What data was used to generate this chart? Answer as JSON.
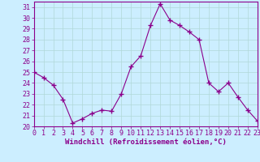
{
  "x": [
    0,
    1,
    2,
    3,
    4,
    5,
    6,
    7,
    8,
    9,
    10,
    11,
    12,
    13,
    14,
    15,
    16,
    17,
    18,
    19,
    20,
    21,
    22,
    23
  ],
  "y": [
    25.0,
    24.5,
    23.8,
    22.5,
    20.3,
    20.7,
    21.2,
    21.5,
    21.4,
    23.0,
    25.5,
    26.5,
    29.3,
    31.3,
    29.8,
    29.3,
    28.7,
    28.0,
    24.0,
    23.2,
    24.0,
    22.7,
    21.5,
    20.5
  ],
  "line_color": "#8B008B",
  "marker": "+",
  "marker_size": 4,
  "bg_color": "#cceeff",
  "grid_color": "#b0d8d8",
  "xlabel": "Windchill (Refroidissement éolien,°C)",
  "ylabel": "",
  "xlim": [
    0,
    23
  ],
  "ylim": [
    20,
    31.5
  ],
  "yticks": [
    20,
    21,
    22,
    23,
    24,
    25,
    26,
    27,
    28,
    29,
    30,
    31
  ],
  "xticks": [
    0,
    1,
    2,
    3,
    4,
    5,
    6,
    7,
    8,
    9,
    10,
    11,
    12,
    13,
    14,
    15,
    16,
    17,
    18,
    19,
    20,
    21,
    22,
    23
  ],
  "axis_color": "#8B008B",
  "tick_color": "#8B008B",
  "label_fontsize": 6.5,
  "tick_fontsize": 6.0,
  "linewidth": 0.8
}
